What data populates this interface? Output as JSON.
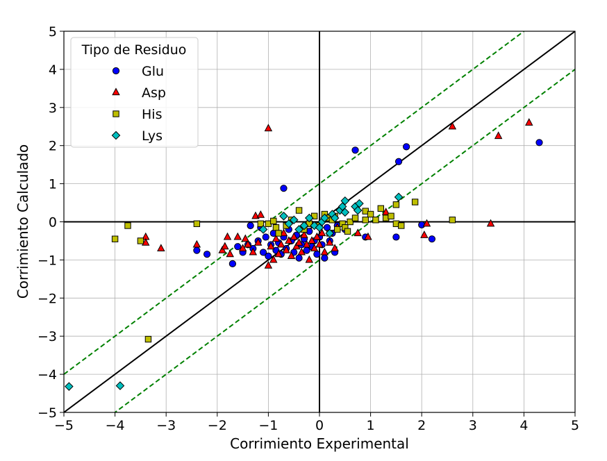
{
  "chart_data": {
    "type": "scatter",
    "title": "",
    "xlabel": "Corrimiento Experimental",
    "ylabel": "Corrimiento Calculado",
    "xlim": [
      -5,
      5
    ],
    "ylim": [
      -5,
      5
    ],
    "xticks": [
      -5,
      -4,
      -3,
      -2,
      -1,
      0,
      1,
      2,
      3,
      4,
      5
    ],
    "yticks": [
      -5,
      -4,
      -3,
      -2,
      -1,
      0,
      1,
      2,
      3,
      4,
      5
    ],
    "tick_labels_x": [
      "−5",
      "−4",
      "−3",
      "−2",
      "−1",
      "0",
      "1",
      "2",
      "3",
      "4",
      "5"
    ],
    "tick_labels_y": [
      "−5",
      "−4",
      "−3",
      "−2",
      "−1",
      "0",
      "1",
      "2",
      "3",
      "4",
      "5"
    ],
    "grid": true,
    "legend": {
      "title": "Tipo de Residuo",
      "placement": "top-left"
    },
    "reference_lines": [
      {
        "kind": "identity",
        "slope": 1,
        "intercept": 0,
        "color": "#000000",
        "style": "solid"
      },
      {
        "kind": "upper-band",
        "slope": 1,
        "intercept": 1,
        "color": "#008000",
        "style": "dashed"
      },
      {
        "kind": "lower-band",
        "slope": 1,
        "intercept": -1,
        "color": "#008000",
        "style": "dashed"
      },
      {
        "kind": "x-zero",
        "x": 0,
        "color": "#000000",
        "style": "solid"
      },
      {
        "kind": "y-zero",
        "y": 0,
        "color": "#000000",
        "style": "solid"
      }
    ],
    "series": [
      {
        "name": "Glu",
        "marker": "circle",
        "color": "#0000ff",
        "points": [
          [
            -2.4,
            -0.75
          ],
          [
            -2.2,
            -0.85
          ],
          [
            -1.7,
            -1.1
          ],
          [
            -1.6,
            -0.65
          ],
          [
            -1.5,
            -0.8
          ],
          [
            -1.4,
            -0.6
          ],
          [
            -1.35,
            -0.1
          ],
          [
            -1.3,
            -0.7
          ],
          [
            -1.2,
            -0.5
          ],
          [
            -1.15,
            -0.15
          ],
          [
            -1.1,
            -0.8
          ],
          [
            -1.05,
            -0.4
          ],
          [
            -1.0,
            -0.9
          ],
          [
            -0.95,
            -0.6
          ],
          [
            -0.9,
            -0.3
          ],
          [
            -0.85,
            -0.75
          ],
          [
            -0.8,
            -0.55
          ],
          [
            -0.75,
            -0.85
          ],
          [
            -0.7,
            0.88
          ],
          [
            -0.7,
            -0.4
          ],
          [
            -0.65,
            -0.7
          ],
          [
            -0.6,
            -0.2
          ],
          [
            -0.55,
            -0.5
          ],
          [
            -0.5,
            -0.8
          ],
          [
            -0.45,
            -0.35
          ],
          [
            -0.4,
            -0.95
          ],
          [
            -0.35,
            -0.6
          ],
          [
            -0.3,
            -0.45
          ],
          [
            -0.25,
            -0.75
          ],
          [
            -0.2,
            -0.25
          ],
          [
            -0.15,
            -0.65
          ],
          [
            -0.1,
            -0.5
          ],
          [
            -0.05,
            -0.85
          ],
          [
            0.0,
            -0.4
          ],
          [
            0.05,
            -0.6
          ],
          [
            0.1,
            -0.95
          ],
          [
            0.15,
            -0.15
          ],
          [
            0.2,
            -0.5
          ],
          [
            0.25,
            -0.3
          ],
          [
            0.3,
            -0.8
          ],
          [
            0.35,
            -0.1
          ],
          [
            0.5,
            -0.2
          ],
          [
            0.7,
            1.88
          ],
          [
            0.9,
            -0.4
          ],
          [
            1.5,
            -0.4
          ],
          [
            1.55,
            1.58
          ],
          [
            1.7,
            1.97
          ],
          [
            2.0,
            -0.08
          ],
          [
            2.2,
            -0.45
          ],
          [
            4.3,
            2.08
          ]
        ]
      },
      {
        "name": "Asp",
        "marker": "triangle",
        "color": "#ff0000",
        "points": [
          [
            -3.4,
            -0.4
          ],
          [
            -3.4,
            -0.55
          ],
          [
            -3.1,
            -0.7
          ],
          [
            -2.4,
            -0.6
          ],
          [
            -1.9,
            -0.75
          ],
          [
            -1.85,
            -0.65
          ],
          [
            -1.8,
            -0.4
          ],
          [
            -1.75,
            -0.85
          ],
          [
            -1.6,
            -0.4
          ],
          [
            -1.5,
            -0.7
          ],
          [
            -1.45,
            -0.45
          ],
          [
            -1.4,
            -0.6
          ],
          [
            -1.3,
            -0.8
          ],
          [
            -1.25,
            0.15
          ],
          [
            -1.2,
            -0.55
          ],
          [
            -1.15,
            0.18
          ],
          [
            -1.0,
            2.45
          ],
          [
            -1.0,
            -1.15
          ],
          [
            -0.95,
            -0.65
          ],
          [
            -0.9,
            -1.0
          ],
          [
            -0.85,
            -0.45
          ],
          [
            -0.8,
            -0.85
          ],
          [
            -0.75,
            -0.6
          ],
          [
            -0.7,
            -0.3
          ],
          [
            -0.65,
            -0.75
          ],
          [
            -0.6,
            -0.5
          ],
          [
            -0.55,
            -0.9
          ],
          [
            -0.5,
            -0.4
          ],
          [
            -0.45,
            -0.65
          ],
          [
            -0.4,
            -0.55
          ],
          [
            -0.35,
            -0.8
          ],
          [
            -0.3,
            -0.35
          ],
          [
            -0.25,
            -0.6
          ],
          [
            -0.2,
            -1.0
          ],
          [
            -0.15,
            -0.5
          ],
          [
            -0.1,
            -0.7
          ],
          [
            -0.05,
            -0.4
          ],
          [
            0.0,
            -0.6
          ],
          [
            0.05,
            -0.3
          ],
          [
            0.1,
            -0.8
          ],
          [
            0.2,
            -0.55
          ],
          [
            0.3,
            -0.7
          ],
          [
            0.35,
            -0.15
          ],
          [
            0.75,
            -0.3
          ],
          [
            0.95,
            -0.4
          ],
          [
            1.3,
            0.25
          ],
          [
            2.05,
            -0.35
          ],
          [
            2.1,
            -0.05
          ],
          [
            2.6,
            2.5
          ],
          [
            3.35,
            -0.05
          ],
          [
            3.5,
            2.25
          ],
          [
            4.1,
            2.6
          ]
        ]
      },
      {
        "name": "His",
        "marker": "square",
        "color": "#bfbf00",
        "points": [
          [
            -4.0,
            -0.45
          ],
          [
            -3.75,
            -0.1
          ],
          [
            -3.5,
            -0.5
          ],
          [
            -3.35,
            -3.08
          ],
          [
            -2.4,
            -0.05
          ],
          [
            -1.15,
            -0.05
          ],
          [
            -1.0,
            -0.05
          ],
          [
            -0.9,
            0.02
          ],
          [
            -0.85,
            -0.15
          ],
          [
            -0.8,
            -0.3
          ],
          [
            -0.65,
            -0.1
          ],
          [
            -0.55,
            0.05
          ],
          [
            -0.4,
            0.3
          ],
          [
            -0.3,
            -0.2
          ],
          [
            -0.2,
            -0.05
          ],
          [
            -0.1,
            0.15
          ],
          [
            0.0,
            -0.1
          ],
          [
            0.1,
            0.2
          ],
          [
            0.15,
            0.1
          ],
          [
            0.2,
            -0.3
          ],
          [
            0.25,
            0.05
          ],
          [
            0.3,
            0.15
          ],
          [
            0.35,
            -0.2
          ],
          [
            0.45,
            -0.05
          ],
          [
            0.5,
            -0.15
          ],
          [
            0.55,
            -0.25
          ],
          [
            0.6,
            0.0
          ],
          [
            0.7,
            0.1
          ],
          [
            0.9,
            0.05
          ],
          [
            0.9,
            0.28
          ],
          [
            1.0,
            0.2
          ],
          [
            1.1,
            0.05
          ],
          [
            1.2,
            0.35
          ],
          [
            1.3,
            0.1
          ],
          [
            1.4,
            0.15
          ],
          [
            1.5,
            -0.05
          ],
          [
            1.5,
            0.45
          ],
          [
            1.6,
            -0.1
          ],
          [
            1.87,
            0.52
          ],
          [
            2.6,
            0.05
          ]
        ]
      },
      {
        "name": "Lys",
        "marker": "diamond",
        "color": "#00bfbf",
        "points": [
          [
            -4.9,
            -4.32
          ],
          [
            -3.9,
            -4.3
          ],
          [
            -1.1,
            -0.2
          ],
          [
            -0.7,
            0.15
          ],
          [
            -0.6,
            -0.05
          ],
          [
            -0.5,
            0.05
          ],
          [
            -0.4,
            -0.2
          ],
          [
            -0.3,
            -0.1
          ],
          [
            -0.2,
            0.1
          ],
          [
            -0.1,
            -0.1
          ],
          [
            0.0,
            -0.15
          ],
          [
            0.05,
            0.0
          ],
          [
            0.1,
            0.1
          ],
          [
            0.2,
            -0.3
          ],
          [
            0.25,
            0.2
          ],
          [
            0.3,
            0.1
          ],
          [
            0.4,
            0.3
          ],
          [
            0.45,
            0.4
          ],
          [
            0.5,
            0.25
          ],
          [
            0.5,
            0.55
          ],
          [
            0.7,
            0.4
          ],
          [
            0.75,
            0.3
          ],
          [
            0.78,
            0.48
          ],
          [
            1.55,
            0.65
          ]
        ]
      }
    ]
  }
}
